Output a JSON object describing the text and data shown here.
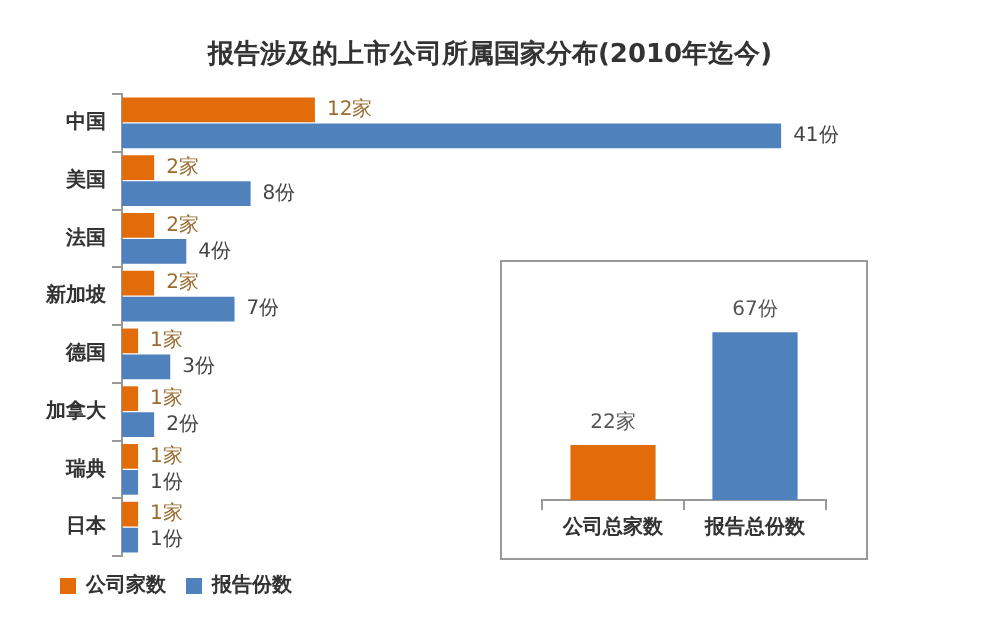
{
  "chart_data": [
    {
      "type": "bar",
      "orientation": "horizontal",
      "title": "报告涉及的上市公司所属国家分布(2010年迄今)",
      "categories": [
        "中国",
        "美国",
        "法国",
        "新加坡",
        "德国",
        "加拿大",
        "瑞典",
        "日本"
      ],
      "legend": "bottom",
      "series": [
        {
          "name": "公司家数",
          "color": "#e36c0a",
          "values": [
            12,
            2,
            2,
            2,
            1,
            1,
            1,
            1
          ],
          "value_labels": [
            "12家",
            "2家",
            "2家",
            "2家",
            "1家",
            "1家",
            "1家",
            "1家"
          ]
        },
        {
          "name": "报告份数",
          "color": "#4f81bd",
          "values": [
            41,
            8,
            4,
            7,
            3,
            2,
            1,
            1
          ],
          "value_labels": [
            "41份",
            "8份",
            "4份",
            "7份",
            "3份",
            "2份",
            "1份",
            "1份"
          ]
        }
      ]
    },
    {
      "type": "bar",
      "categories": [
        "公司总家数",
        "报告总份数"
      ],
      "values": [
        22,
        67
      ],
      "colors": [
        "#e36c0a",
        "#4f81bd"
      ],
      "value_labels": [
        "22家",
        "67份"
      ]
    }
  ]
}
